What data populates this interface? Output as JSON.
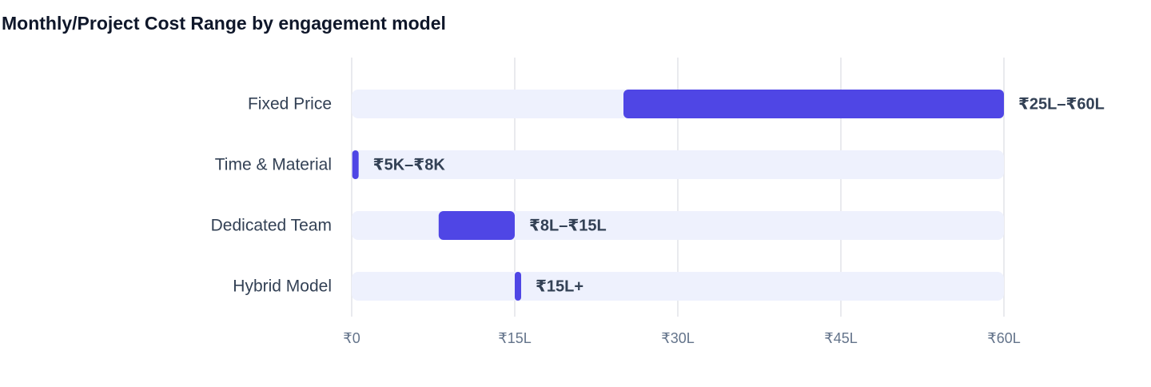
{
  "chart_data": {
    "type": "range-bar",
    "title": "Monthly/Project Cost Range by engagement model",
    "categories": [
      "Fixed Price",
      "Time & Material",
      "Dedicated Team",
      "Hybrid Model"
    ],
    "low": [
      25,
      0.05,
      8,
      15
    ],
    "high": [
      60,
      0.08,
      15,
      null
    ],
    "value_labels": [
      "₹25L–₹60L",
      "₹5K–₹8K",
      "₹8L–₹15L",
      "₹15L+"
    ],
    "color": "#4f46e5",
    "track_color": "#eef1fd",
    "xlim": [
      0,
      60
    ],
    "xticks": [
      {
        "value": 0,
        "label": "₹0"
      },
      {
        "value": 15,
        "label": "₹15L"
      },
      {
        "value": 30,
        "label": "₹30L"
      },
      {
        "value": 45,
        "label": "₹45L"
      },
      {
        "value": 60,
        "label": "₹60L"
      }
    ],
    "grid": true
  }
}
